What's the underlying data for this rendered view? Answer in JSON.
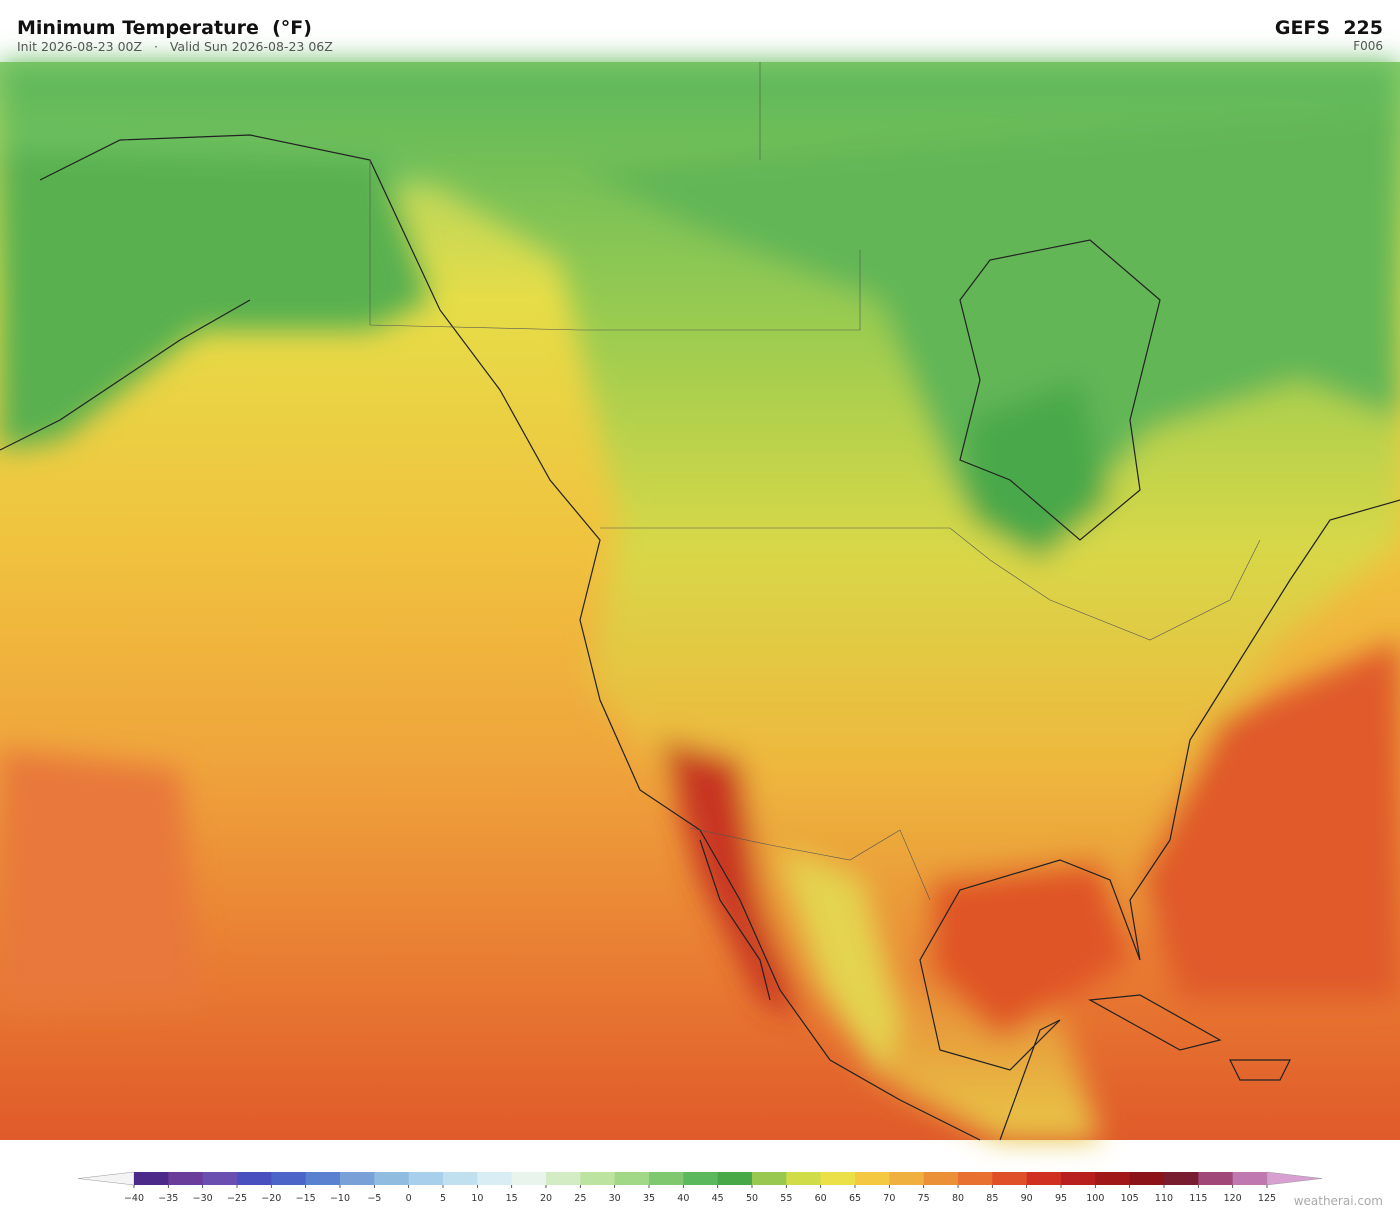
{
  "header": {
    "title": "Minimum Temperature  (°F)",
    "subtitle": "Init 2026-08-23 00Z   ·   Valid Sun 2026-08-23 06Z",
    "model": "GEFS  225",
    "frame": "F006"
  },
  "colorbar": {
    "ticks": [
      {
        "value": -40,
        "label": "−40"
      },
      {
        "value": -35,
        "label": "−35"
      },
      {
        "value": -30,
        "label": "−30"
      },
      {
        "value": -25,
        "label": "−25"
      },
      {
        "value": -20,
        "label": "−20"
      },
      {
        "value": -15,
        "label": "−15"
      },
      {
        "value": -10,
        "label": "−10"
      },
      {
        "value": -5,
        "label": "−5"
      },
      0,
      5,
      10,
      15,
      20,
      25,
      30,
      35,
      40,
      45,
      50,
      55,
      60,
      65,
      70,
      75,
      80,
      85,
      90,
      95,
      100,
      105,
      110,
      115,
      120,
      125
    ],
    "colors": [
      "#4b2a8a",
      "#6a3d9a",
      "#6a4fb0",
      "#4a4fc0",
      "#4a64c8",
      "#5a80d0",
      "#7aa0d8",
      "#90bce0",
      "#a8d0ec",
      "#c0e0f0",
      "#d8eef4",
      "#e8f4ec",
      "#d4ecc4",
      "#bde3a0",
      "#a0d888",
      "#80c870",
      "#5cb85c",
      "#48a848",
      "#98c850",
      "#d0dc48",
      "#ece048",
      "#f4c840",
      "#f0b040",
      "#ec9038",
      "#e87030",
      "#e05028",
      "#d03020",
      "#b82020",
      "#a01818",
      "#8c1418",
      "#781c30",
      "#a04878",
      "#c078b0"
    ],
    "under_color": "#f4f4f4",
    "over_color": "#d8a0d0"
  },
  "watermark": "weatherai.com"
}
